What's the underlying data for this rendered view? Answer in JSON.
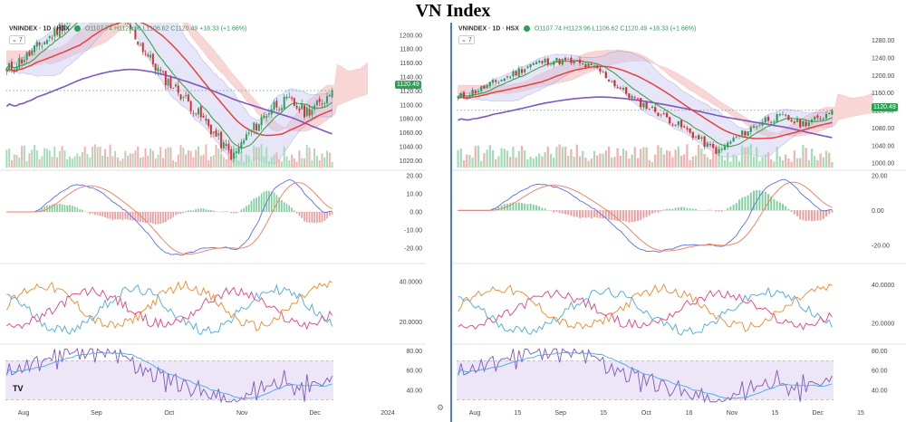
{
  "page_title": "VN Index",
  "panels": {
    "left": {
      "legend_symbol": "VNINDEX · 1D · HSX",
      "legend_ohlc": "O1107.74 H1123.96 L1106.62 C1120.49 +18.33 (+1.66%)",
      "collapse_label": "7",
      "price_badge": "1120.49",
      "logo": "TV"
    },
    "right": {
      "legend_symbol": "VNINDEX · 1D · HSX",
      "legend_ohlc": "O1107.74 H1123.96 L1106.62 C1120.49 +18.33 (+1.66%)",
      "collapse_label": "7",
      "price_badge": "1120.49",
      "gear": "⚙"
    }
  },
  "chart_data": [
    {
      "id": "left",
      "type": "candlestick-multi-pane",
      "x_ticks": [
        "Aug",
        "Sep",
        "Oct",
        "Nov",
        "Dec",
        "2024"
      ],
      "panes": [
        {
          "name": "price",
          "ylim": [
            1010,
            1205
          ],
          "y_ticks": [],
          "last_close": 1120.49
        },
        {
          "name": "macd",
          "ylim": [
            -28,
            22
          ],
          "y_ticks": []
        },
        {
          "name": "dmi",
          "ylim": [
            10,
            48
          ],
          "y_ticks": []
        },
        {
          "name": "rsi",
          "ylim": [
            25,
            85
          ],
          "y_ticks": []
        }
      ]
    },
    {
      "id": "right",
      "type": "candlestick-multi-pane",
      "x_ticks": [
        "Aug",
        "15",
        "Sep",
        "15",
        "Oct",
        "16",
        "Nov",
        "15",
        "Dec",
        "15"
      ],
      "panes": [
        {
          "name": "price",
          "ylim": [
            990,
            1300
          ],
          "y_ticks": [
            "1280.00",
            "1240.00",
            "1200.00",
            "1160.00",
            "1120.00",
            "1080.00",
            "1040.00",
            "1000.00"
          ],
          "last_close": 1120.49
        },
        {
          "name": "macd",
          "ylim": [
            -30,
            22
          ],
          "y_ticks": [
            "20.00",
            "0.00",
            "-20.00"
          ]
        },
        {
          "name": "dmi",
          "ylim": [
            10,
            50
          ],
          "y_ticks": [
            "40.0000",
            "20.0000"
          ]
        },
        {
          "name": "rsi",
          "ylim": [
            25,
            85
          ],
          "y_ticks": [
            "40.00",
            "60.00",
            "80.00"
          ]
        }
      ]
    }
  ],
  "left_y_ticks": {
    "price": [
      "1200.00",
      "1180.00",
      "1160.00",
      "1140.00",
      "1120.00",
      "1100.00",
      "1080.00",
      "1060.00",
      "1040.00",
      "1020.00"
    ],
    "macd": [
      "20.00",
      "10.00",
      "0.00",
      "-10.00",
      "-20.00"
    ],
    "dmi": [
      "40.0000",
      "20.0000"
    ],
    "rsi": [
      "80.00",
      "60.00",
      "40.00"
    ]
  },
  "colors": {
    "up": "#2e9e57",
    "down": "#d63031",
    "ma_red": "#e8403a",
    "ma_purple": "#7e57c2",
    "ma_green": "#43a047",
    "cloud_red": "#f4b6b6",
    "cloud_green": "#b9e4c1",
    "bb_fill": "#c8c8f0",
    "vol_up": "#a5dcb8",
    "vol_down": "#f3b0b0",
    "rsi_bg": "#ece6f7"
  }
}
